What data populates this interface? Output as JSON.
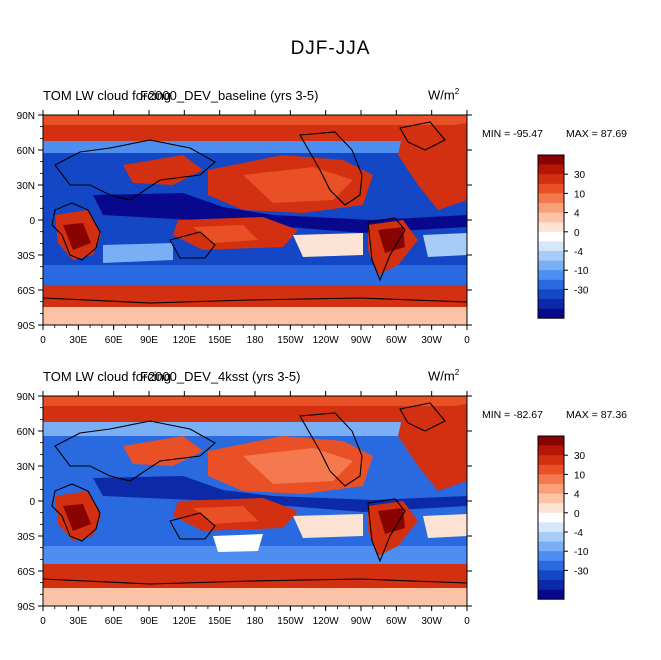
{
  "title": "DJF-JJA",
  "colorbar": {
    "colors": [
      "#08088c",
      "#0c2aa8",
      "#1447c6",
      "#2a6ae0",
      "#4d8ef0",
      "#7aaef5",
      "#a7ccf8",
      "#d6e7fb",
      "#ffffff",
      "#fde3d4",
      "#fcc3a7",
      "#f9a07a",
      "#f5794e",
      "#e95026",
      "#d23010",
      "#b51606",
      "#8a0303"
    ],
    "labels": [
      "-30",
      "-10",
      "-4",
      "0",
      "4",
      "10",
      "30"
    ]
  },
  "chart_data": [
    {
      "type": "heatmap",
      "left_title": "TOM LW cloud forcing",
      "center_title": "F2000_DEV_baseline (yrs 3-5)",
      "units": "W/m",
      "units_sup": "2",
      "min_label": "MIN = -95.47",
      "max_label": "MAX =  87.69",
      "min": -95.47,
      "max": 87.69,
      "x_ticks": [
        "0",
        "30E",
        "60E",
        "90E",
        "120E",
        "150E",
        "180",
        "150W",
        "120W",
        "90W",
        "60W",
        "30W",
        "0"
      ],
      "y_ticks": [
        "90N",
        "60N",
        "30N",
        "0",
        "30S",
        "60S",
        "90S"
      ],
      "xlim": [
        0,
        360
      ],
      "ylim": [
        -90,
        90
      ],
      "colorbar_levels": [
        "-30",
        "-10",
        "-4",
        "0",
        "4",
        "10",
        "30"
      ]
    },
    {
      "type": "heatmap",
      "left_title": "TOM LW cloud forcing",
      "center_title": "F2000_DEV_4ksst (yrs 3-5)",
      "units": "W/m",
      "units_sup": "2",
      "min_label": "MIN = -82.67",
      "max_label": "MAX =  87.36",
      "min": -82.67,
      "max": 87.36,
      "x_ticks": [
        "0",
        "30E",
        "60E",
        "90E",
        "120E",
        "150E",
        "180",
        "150W",
        "120W",
        "90W",
        "60W",
        "30W",
        "0"
      ],
      "y_ticks": [
        "90N",
        "60N",
        "30N",
        "0",
        "30S",
        "60S",
        "90S"
      ],
      "xlim": [
        0,
        360
      ],
      "ylim": [
        -90,
        90
      ],
      "colorbar_levels": [
        "-30",
        "-10",
        "-4",
        "0",
        "4",
        "10",
        "30"
      ]
    }
  ]
}
